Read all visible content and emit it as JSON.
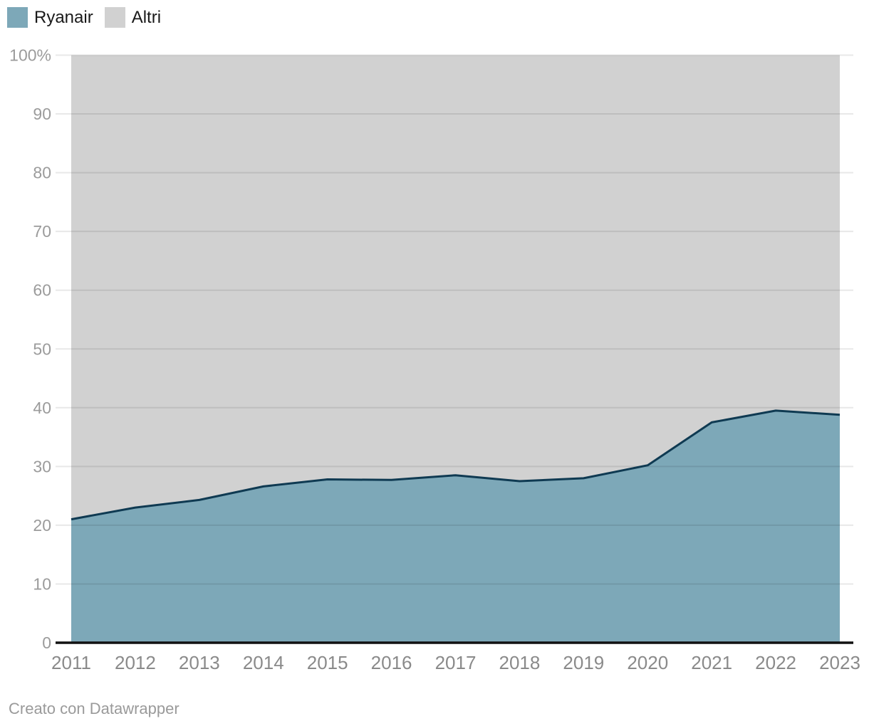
{
  "legend": {
    "items": [
      {
        "label": "Ryanair",
        "color": "#7da8b8"
      },
      {
        "label": "Altri",
        "color": "#d1d1d1"
      }
    ]
  },
  "footer": {
    "credit": "Creato con Datawrapper"
  },
  "chart_data": {
    "type": "area",
    "stacked": true,
    "percent": true,
    "title": "",
    "xlabel": "",
    "ylabel": "",
    "ylim": [
      0,
      100
    ],
    "grid": true,
    "legend_position": "top-left",
    "categories": [
      "2011",
      "2012",
      "2013",
      "2014",
      "2015",
      "2016",
      "2017",
      "2018",
      "2019",
      "2020",
      "2021",
      "2022",
      "2023"
    ],
    "series": [
      {
        "name": "Ryanair",
        "color": "#7da8b8",
        "line_color": "#0f3a52",
        "values": [
          21.0,
          23.0,
          24.3,
          26.6,
          27.8,
          27.7,
          28.5,
          27.5,
          28.0,
          30.2,
          37.5,
          39.5,
          38.8
        ]
      },
      {
        "name": "Altri",
        "color": "#d1d1d1",
        "values": [
          79.0,
          77.0,
          75.7,
          73.4,
          72.2,
          72.3,
          71.5,
          72.5,
          72.0,
          69.8,
          62.5,
          60.5,
          61.2
        ]
      }
    ],
    "y_ticks": [
      0,
      10,
      20,
      30,
      40,
      50,
      60,
      70,
      80,
      90,
      100
    ],
    "y_tick_labels": [
      "0",
      "10",
      "20",
      "30",
      "40",
      "50",
      "60",
      "70",
      "80",
      "90",
      "100%"
    ]
  }
}
